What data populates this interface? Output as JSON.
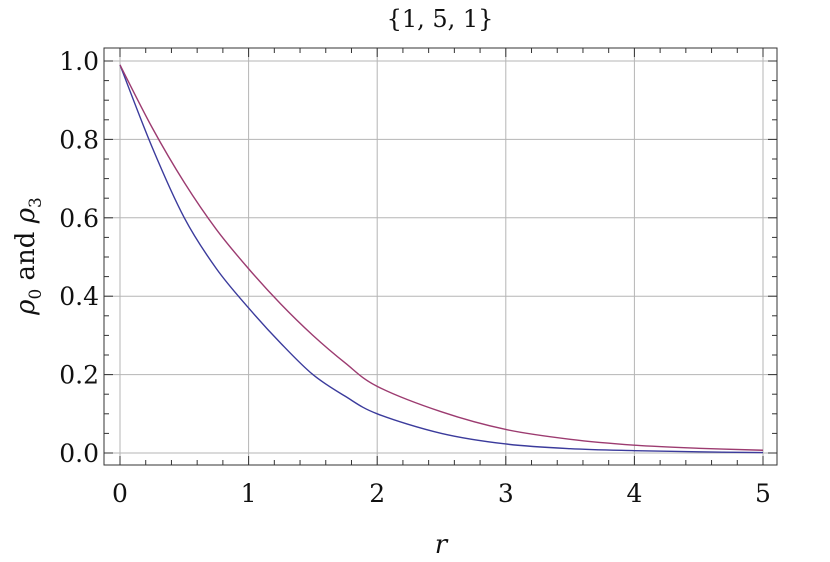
{
  "chart_data": {
    "type": "line",
    "title": "{1, 5, 1}",
    "xlabel": "r",
    "ylabel_parts": {
      "rho": "ρ",
      "sub0": "0",
      "and": " and ",
      "sub3": "3"
    },
    "xlim": [
      0,
      5
    ],
    "ylim": [
      -0.03,
      1.03
    ],
    "grid": true,
    "x_ticks": [
      0,
      1,
      2,
      3,
      4,
      5
    ],
    "x_tick_labels": [
      "0",
      "1",
      "2",
      "3",
      "4",
      "5"
    ],
    "y_ticks": [
      0.0,
      0.2,
      0.4,
      0.6,
      0.8,
      1.0
    ],
    "y_tick_labels": [
      "0.0",
      "0.2",
      "0.4",
      "0.6",
      "0.8",
      "1.0"
    ],
    "x": [
      0,
      0.25,
      0.5,
      0.75,
      1.0,
      1.25,
      1.5,
      1.75,
      2.0,
      2.5,
      3.0,
      3.5,
      4.0,
      4.5,
      5.0
    ],
    "series": [
      {
        "color": "#3b3b9c",
        "values": [
          0.99,
          0.78,
          0.6,
          0.47,
          0.37,
          0.28,
          0.2,
          0.145,
          0.1,
          0.05,
          0.023,
          0.011,
          0.006,
          0.003,
          0.001
        ]
      },
      {
        "color": "#9c3b70",
        "values": [
          0.99,
          0.83,
          0.69,
          0.57,
          0.47,
          0.38,
          0.3,
          0.23,
          0.17,
          0.105,
          0.06,
          0.035,
          0.02,
          0.012,
          0.007
        ]
      }
    ]
  }
}
